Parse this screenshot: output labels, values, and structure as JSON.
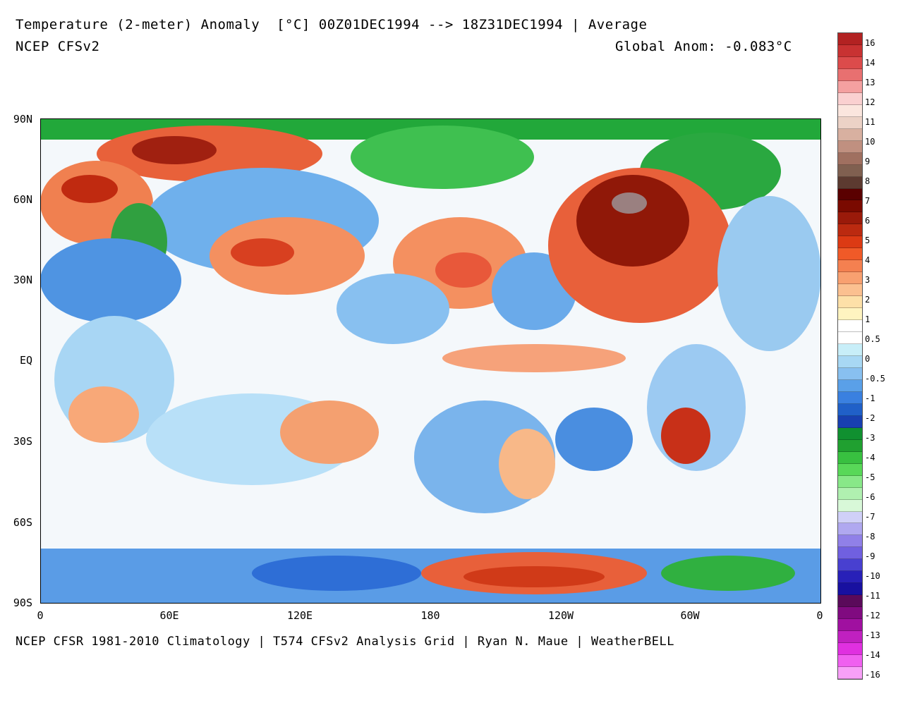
{
  "header": {
    "title": "Temperature (2-meter) Anomaly  [°C] 00Z01DEC1994 --> 18Z31DEC1994 | Average",
    "model": "NCEP CFSv2",
    "global_anom": "Global Anom: -0.083°C"
  },
  "footer": {
    "credit": "NCEP CFSR 1981-2010 Climatology | T574 CFSv2 Analysis Grid | Ryan N. Maue | WeatherBELL"
  },
  "axes": {
    "y_ticks": [
      "90N",
      "60N",
      "30N",
      "EQ",
      "30S",
      "60S",
      "90S"
    ],
    "x_ticks": [
      "0",
      "60E",
      "120E",
      "180",
      "120W",
      "60W",
      "0"
    ]
  },
  "colorbar": {
    "labels": [
      "16",
      "14",
      "13",
      "12",
      "11",
      "10",
      "9",
      "8",
      "7",
      "6",
      "5",
      "4",
      "3",
      "2",
      "1",
      "0.5",
      "0",
      "-0.5",
      "-1",
      "-2",
      "-3",
      "-4",
      "-5",
      "-6",
      "-7",
      "-8",
      "-9",
      "-10",
      "-11",
      "-12",
      "-13",
      "-14",
      "-16"
    ],
    "colors": [
      "#b22222",
      "#c83232",
      "#dc4b4b",
      "#e87070",
      "#f4a0a0",
      "#fad0d0",
      "#fbe6de",
      "#ecd2c6",
      "#d8b0a0",
      "#c09080",
      "#a07060",
      "#806050",
      "#5c3a30",
      "#5a0000",
      "#7a0a00",
      "#9a1a0a",
      "#bb2a10",
      "#dc3a14",
      "#f05a28",
      "#f48050",
      "#f8a070",
      "#fbc090",
      "#fde0a8",
      "#fff4c0",
      "#ffffff",
      "#ffffff",
      "#c8eef8",
      "#a8d8f4",
      "#88c0f0",
      "#5aa0e8",
      "#3a80e0",
      "#2060c8",
      "#1840b0",
      "#109030",
      "#20a030",
      "#38c040",
      "#58d858",
      "#88e888",
      "#b0f0b0",
      "#d8f8d8",
      "#d0d0f8",
      "#b0a8f0",
      "#9080e8",
      "#7060e0",
      "#4840d0",
      "#2820b8",
      "#1810a0",
      "#5a0a5a",
      "#800a80",
      "#a010a0",
      "#c020c0",
      "#e030e0",
      "#f060f0",
      "#f8a0f8"
    ]
  }
}
